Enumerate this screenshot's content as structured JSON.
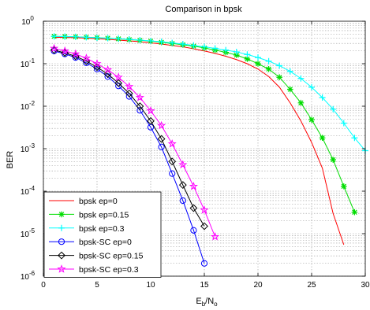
{
  "chart_data": {
    "type": "line",
    "title": "Comparison in bpsk",
    "xlabel": {
      "base": "E",
      "sub1": "b",
      "mid": "/N",
      "sub2": "o"
    },
    "ylabel": "BER",
    "xlim": [
      0,
      30
    ],
    "ylim": [
      1e-06,
      1
    ],
    "yscale": "log",
    "grid": true,
    "legend_position": "bottom-left",
    "x_ticks": [
      "0",
      "5",
      "10",
      "15",
      "20",
      "25",
      "30"
    ],
    "y_ticks": [
      {
        "base": "10",
        "exp": "0"
      },
      {
        "base": "10",
        "exp": "-1"
      },
      {
        "base": "10",
        "exp": "-2"
      },
      {
        "base": "10",
        "exp": "-3"
      },
      {
        "base": "10",
        "exp": "-4"
      },
      {
        "base": "10",
        "exp": "-5"
      },
      {
        "base": "10",
        "exp": "-6"
      }
    ],
    "series": [
      {
        "name": "bpsk ep=0",
        "color": "#ff0000",
        "marker": "none",
        "x": [
          1,
          2,
          3,
          4,
          5,
          6,
          7,
          8,
          9,
          10,
          11,
          12,
          13,
          14,
          15,
          16,
          17,
          18,
          19,
          20,
          21,
          22,
          23,
          24,
          25,
          26,
          27,
          28
        ],
        "y": [
          0.42,
          0.415,
          0.41,
          0.4,
          0.39,
          0.375,
          0.36,
          0.345,
          0.33,
          0.31,
          0.29,
          0.27,
          0.25,
          0.225,
          0.2,
          0.175,
          0.15,
          0.125,
          0.1,
          0.075,
          0.05,
          0.028,
          0.012,
          0.0045,
          0.0014,
          0.00035,
          3e-05,
          5.5e-06
        ]
      },
      {
        "name": "bpsk ep=0.15",
        "color": "#00dd00",
        "marker": "star",
        "x": [
          1,
          2,
          3,
          4,
          5,
          6,
          7,
          8,
          9,
          10,
          11,
          12,
          13,
          14,
          15,
          16,
          17,
          18,
          19,
          20,
          21,
          22,
          23,
          24,
          25,
          26,
          27,
          28,
          29
        ],
        "y": [
          0.44,
          0.435,
          0.43,
          0.42,
          0.41,
          0.4,
          0.385,
          0.37,
          0.355,
          0.34,
          0.32,
          0.3,
          0.28,
          0.26,
          0.235,
          0.21,
          0.185,
          0.16,
          0.13,
          0.1,
          0.075,
          0.048,
          0.025,
          0.012,
          0.0048,
          0.0018,
          0.00055,
          0.00013,
          3.2e-05
        ]
      },
      {
        "name": "bpsk ep=0.3",
        "color": "#00ffff",
        "marker": "plus",
        "x": [
          1,
          2,
          3,
          4,
          5,
          6,
          7,
          8,
          9,
          10,
          11,
          12,
          13,
          14,
          15,
          16,
          17,
          18,
          19,
          20,
          21,
          22,
          23,
          24,
          25,
          26,
          27,
          28,
          29,
          30
        ],
        "y": [
          0.44,
          0.435,
          0.43,
          0.42,
          0.41,
          0.4,
          0.39,
          0.375,
          0.36,
          0.345,
          0.33,
          0.31,
          0.29,
          0.27,
          0.25,
          0.23,
          0.21,
          0.19,
          0.165,
          0.14,
          0.115,
          0.09,
          0.066,
          0.045,
          0.028,
          0.016,
          0.0085,
          0.004,
          0.0018,
          0.0009
        ]
      },
      {
        "name": "bpsk-SC ep=0",
        "color": "#0000ff",
        "marker": "circle",
        "x": [
          1,
          2,
          3,
          4,
          5,
          6,
          7,
          8,
          9,
          10,
          11,
          12,
          13,
          14,
          15
        ],
        "y": [
          0.2,
          0.17,
          0.14,
          0.105,
          0.075,
          0.05,
          0.03,
          0.017,
          0.008,
          0.0032,
          0.0011,
          0.00026,
          6e-05,
          1.2e-05,
          2e-06
        ]
      },
      {
        "name": "bpsk-SC ep=0.15",
        "color": "#000000",
        "marker": "diamond",
        "x": [
          1,
          2,
          3,
          4,
          5,
          6,
          7,
          8,
          9,
          10,
          11,
          12,
          13,
          14,
          15
        ],
        "y": [
          0.21,
          0.18,
          0.15,
          0.115,
          0.083,
          0.057,
          0.035,
          0.02,
          0.01,
          0.0045,
          0.0017,
          0.0005,
          0.00014,
          4e-05,
          1.5e-05
        ]
      },
      {
        "name": "bpsk-SC ep=0.3",
        "color": "#ff00ff",
        "marker": "pentagram",
        "x": [
          1,
          2,
          3,
          4,
          5,
          6,
          7,
          8,
          9,
          10,
          11,
          12,
          13,
          14,
          15,
          16
        ],
        "y": [
          0.23,
          0.2,
          0.17,
          0.135,
          0.1,
          0.072,
          0.048,
          0.029,
          0.016,
          0.0078,
          0.0035,
          0.0013,
          0.00042,
          0.00013,
          3.6e-05,
          8.5e-06
        ]
      }
    ]
  }
}
